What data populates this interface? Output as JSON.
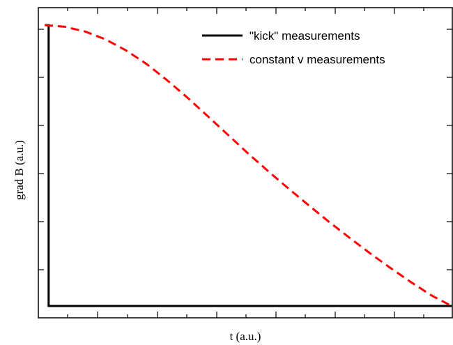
{
  "chart_data": {
    "type": "line",
    "title": "",
    "xlabel": "t (a.u.)",
    "ylabel": "grad B (a.u.)",
    "xlim": [
      0,
      10
    ],
    "ylim": [
      0,
      10
    ],
    "grid": false,
    "legend_position": "top-right",
    "series": [
      {
        "name": "\"kick\" measurements",
        "color": "#000000",
        "style": "solid",
        "x": [
          0,
          0.1,
          0.1,
          10
        ],
        "y": [
          10,
          10,
          0,
          0
        ]
      },
      {
        "name": "constant v measurements",
        "color": "#ff0000",
        "style": "dashed",
        "x": [
          0,
          0.5,
          1,
          1.5,
          2,
          2.5,
          3,
          3.5,
          4,
          4.5,
          5,
          5.5,
          6,
          6.5,
          7,
          7.5,
          8,
          8.5,
          9,
          9.5,
          10
        ],
        "y": [
          10.0,
          9.94,
          9.77,
          9.49,
          9.1,
          8.62,
          8.05,
          7.43,
          6.77,
          6.1,
          5.43,
          4.79,
          4.17,
          3.57,
          2.98,
          2.42,
          1.87,
          1.35,
          0.85,
          0.38,
          0.0
        ]
      }
    ]
  }
}
